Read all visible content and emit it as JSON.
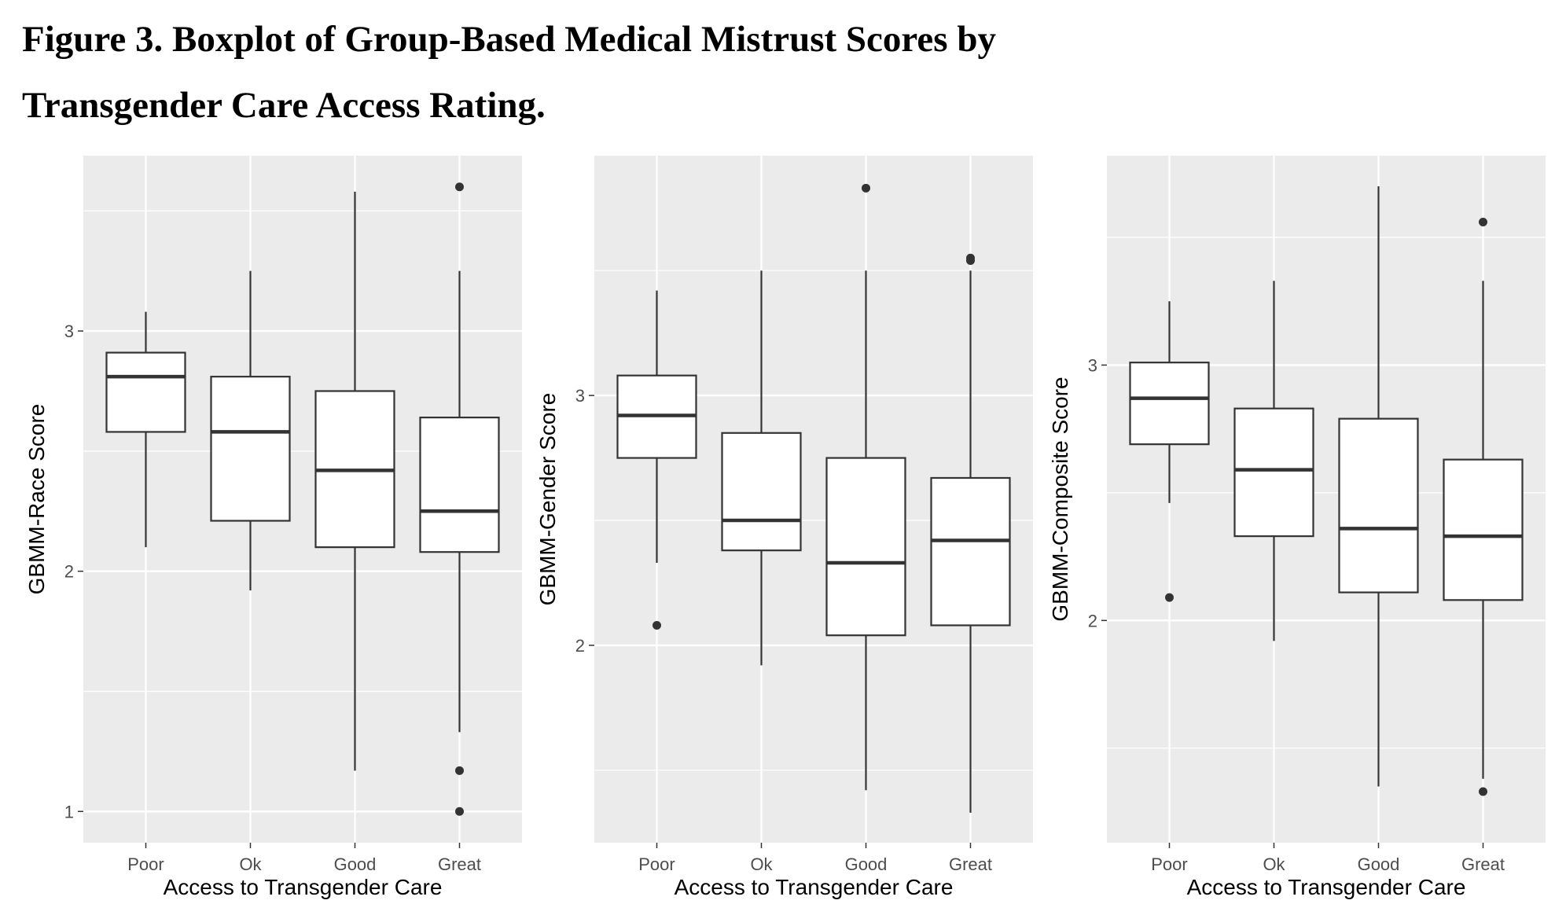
{
  "figure": {
    "title_line1": "Figure 3. Boxplot of Group-Based Medical Mistrust Scores by",
    "title_line2": "Transgender Care Access Rating."
  },
  "chart_data": [
    {
      "type": "boxplot",
      "xlabel": "Access to Transgender Care",
      "ylabel": "GBMM-Race Score",
      "categories": [
        "Poor",
        "Ok",
        "Good",
        "Great"
      ],
      "ylim": [
        0.87,
        3.73
      ],
      "yticks": [
        1,
        2,
        3
      ],
      "grid": true,
      "boxes": [
        {
          "category": "Poor",
          "whisker_low": 2.1,
          "q1": 2.58,
          "median": 2.81,
          "q3": 2.91,
          "whisker_high": 3.08,
          "outliers": []
        },
        {
          "category": "Ok",
          "whisker_low": 1.92,
          "q1": 2.21,
          "median": 2.58,
          "q3": 2.81,
          "whisker_high": 3.25,
          "outliers": []
        },
        {
          "category": "Good",
          "whisker_low": 1.17,
          "q1": 2.1,
          "median": 2.42,
          "q3": 2.75,
          "whisker_high": 3.58,
          "outliers": []
        },
        {
          "category": "Great",
          "whisker_low": 1.33,
          "q1": 2.08,
          "median": 2.25,
          "q3": 2.64,
          "whisker_high": 3.25,
          "outliers": [
            3.6,
            1.17,
            1.0
          ]
        }
      ]
    },
    {
      "type": "boxplot",
      "xlabel": "Access to Transgender Care",
      "ylabel": "GBMM-Gender Score",
      "categories": [
        "Poor",
        "Ok",
        "Good",
        "Great"
      ],
      "ylim": [
        1.21,
        3.96
      ],
      "yticks": [
        2,
        3
      ],
      "grid": true,
      "boxes": [
        {
          "category": "Poor",
          "whisker_low": 2.33,
          "q1": 2.75,
          "median": 2.92,
          "q3": 3.08,
          "whisker_high": 3.42,
          "outliers": [
            2.08
          ]
        },
        {
          "category": "Ok",
          "whisker_low": 1.92,
          "q1": 2.38,
          "median": 2.5,
          "q3": 2.85,
          "whisker_high": 3.5,
          "outliers": []
        },
        {
          "category": "Good",
          "whisker_low": 1.42,
          "q1": 2.04,
          "median": 2.33,
          "q3": 2.75,
          "whisker_high": 3.5,
          "outliers": [
            3.83
          ]
        },
        {
          "category": "Great",
          "whisker_low": 1.33,
          "q1": 2.08,
          "median": 2.42,
          "q3": 2.67,
          "whisker_high": 3.5,
          "outliers": [
            3.55,
            3.54
          ]
        }
      ]
    },
    {
      "type": "boxplot",
      "xlabel": "Access to Transgender Care",
      "ylabel": "GBMM-Composite Score",
      "categories": [
        "Poor",
        "Ok",
        "Good",
        "Great"
      ],
      "ylim": [
        1.13,
        3.82
      ],
      "yticks": [
        2,
        3
      ],
      "grid": true,
      "boxes": [
        {
          "category": "Poor",
          "whisker_low": 2.46,
          "q1": 2.69,
          "median": 2.87,
          "q3": 3.01,
          "whisker_high": 3.25,
          "outliers": [
            2.09
          ]
        },
        {
          "category": "Ok",
          "whisker_low": 1.92,
          "q1": 2.33,
          "median": 2.59,
          "q3": 2.83,
          "whisker_high": 3.33,
          "outliers": []
        },
        {
          "category": "Good",
          "whisker_low": 1.35,
          "q1": 2.11,
          "median": 2.36,
          "q3": 2.79,
          "whisker_high": 3.7,
          "outliers": []
        },
        {
          "category": "Great",
          "whisker_low": 1.38,
          "q1": 2.08,
          "median": 2.33,
          "q3": 2.63,
          "whisker_high": 3.33,
          "outliers": [
            3.56,
            1.33
          ]
        }
      ]
    }
  ]
}
